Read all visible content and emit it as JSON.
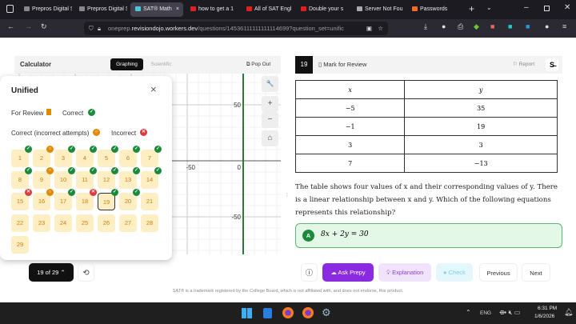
{
  "browser": {
    "tabs": [
      {
        "label": "Prepros Digital SA",
        "color": "#888"
      },
      {
        "label": "Prepros Digital SA",
        "color": "#888"
      },
      {
        "label": "SAT® Math",
        "color": "#4ec6d8",
        "active": true
      },
      {
        "label": "how to get a 1",
        "color": "#e02020"
      },
      {
        "label": "All of SAT Engl",
        "color": "#e02020"
      },
      {
        "label": "Double your s",
        "color": "#e02020"
      },
      {
        "label": "Server Not Fou",
        "color": "#aaa"
      },
      {
        "label": "Passwords",
        "color": "#f06a28"
      }
    ],
    "close_tab": "×",
    "new_tab": "+",
    "url_prefix": "oneprep.",
    "url_domain": "revisiondojo.workers.dev",
    "url_rest": "/questions/14536111111111114699?question_set=unific"
  },
  "calculator": {
    "title": "Calculator",
    "mode_graphing": "Graphing",
    "mode_scientific": "Scientific",
    "pop_out": "Pop Out",
    "graph": {
      "x_labels": [
        "-50",
        "0"
      ],
      "y_labels": [
        "50",
        "-50"
      ]
    },
    "tools": {
      "wrench": "🔧",
      "zoom_in": "+",
      "zoom_out": "−",
      "home": "⌂"
    }
  },
  "popup": {
    "title": "Unified",
    "close": "×",
    "legend": {
      "for_review": "For Review",
      "correct": "Correct",
      "correct_incorrect_attempts": "Correct (incorrect attempts)",
      "incorrect": "Incorrect"
    },
    "questions": [
      {
        "n": "1",
        "s": "c"
      },
      {
        "n": "2",
        "s": "o"
      },
      {
        "n": "3",
        "s": "c"
      },
      {
        "n": "4",
        "s": "c"
      },
      {
        "n": "5",
        "s": "c"
      },
      {
        "n": "6",
        "s": "c"
      },
      {
        "n": "7",
        "s": "c"
      },
      {
        "n": "8",
        "s": "c"
      },
      {
        "n": "9",
        "s": "o"
      },
      {
        "n": "10",
        "s": "c"
      },
      {
        "n": "11",
        "s": "c"
      },
      {
        "n": "12",
        "s": "c"
      },
      {
        "n": "13",
        "s": "c"
      },
      {
        "n": "14",
        "s": "c"
      },
      {
        "n": "15",
        "s": "x"
      },
      {
        "n": "16",
        "s": "o"
      },
      {
        "n": "17",
        "s": "c"
      },
      {
        "n": "18",
        "s": "x"
      },
      {
        "n": "19",
        "s": "c",
        "current": true
      },
      {
        "n": "20",
        "s": "c"
      },
      {
        "n": "21",
        "s": ""
      },
      {
        "n": "22",
        "s": ""
      },
      {
        "n": "23",
        "s": ""
      },
      {
        "n": "24",
        "s": ""
      },
      {
        "n": "25",
        "s": ""
      },
      {
        "n": "26",
        "s": ""
      },
      {
        "n": "27",
        "s": ""
      },
      {
        "n": "28",
        "s": ""
      },
      {
        "n": "29",
        "s": ""
      }
    ]
  },
  "question": {
    "number": "19",
    "mark_review": "Mark for Review",
    "report": "Report",
    "table": {
      "headers": [
        "x",
        "y"
      ],
      "rows": [
        [
          "−5",
          "35"
        ],
        [
          "−1",
          "19"
        ],
        [
          "3",
          "3"
        ],
        [
          "7",
          "−13"
        ]
      ]
    },
    "text": "The table shows four values of x and their corresponding values of y. There is a linear relationship between x and y. Which of the following equations represents this relationship?",
    "choice_a": {
      "letter": "A",
      "text": "8x + 2y = 30"
    }
  },
  "bottom": {
    "progress": "19 of 29",
    "ask_prepy": "Ask Prepy",
    "explanation": "Explanation",
    "check": "Check",
    "previous": "Previous",
    "next": "Next",
    "footer": "SAT® is a trademark registered by the College Board, which is not affiliated with, and does not endorse, this product."
  },
  "taskbar": {
    "lang": "ENG",
    "time": "6:31 PM",
    "date": "1/6/2026"
  }
}
